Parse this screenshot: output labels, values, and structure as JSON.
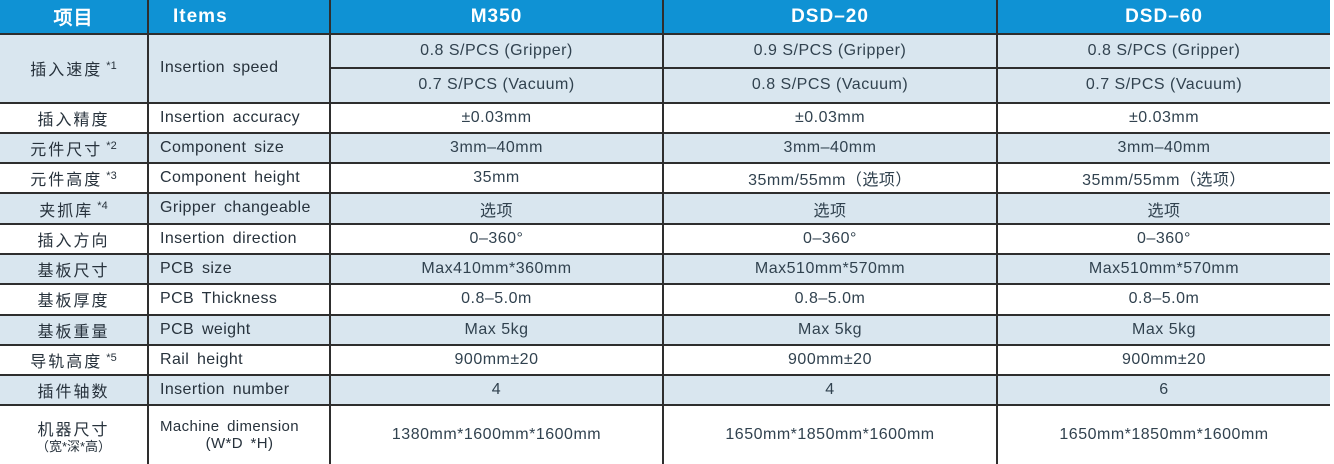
{
  "colors": {
    "header_bg": "#0f92d4",
    "header_text": "#ffffff",
    "row_shaded": "#d9e6ef",
    "row_plain": "#ffffff",
    "grid_line": "#2e2e2e",
    "label_text": "#27323c",
    "value_text": "#31424f"
  },
  "columns": [
    {
      "key": "cn",
      "label": "项目"
    },
    {
      "key": "en",
      "label": "Items"
    },
    {
      "key": "m350",
      "label": "M350"
    },
    {
      "key": "dsd20",
      "label": "DSD–20"
    },
    {
      "key": "dsd60",
      "label": "DSD–60"
    }
  ],
  "rows": [
    {
      "cn": "插入速度",
      "sup": "*1",
      "en": "Insertion speed",
      "span": 2,
      "values": [
        "0.8 S/PCS (Gripper)",
        "0.9 S/PCS (Gripper)",
        "0.8 S/PCS (Gripper)"
      ]
    },
    {
      "continuation": true,
      "values": [
        "0.7 S/PCS (Vacuum)",
        "0.8 S/PCS (Vacuum)",
        "0.7 S/PCS (Vacuum)"
      ]
    },
    {
      "cn": "插入精度",
      "en": "Insertion accuracy",
      "values": [
        "±0.03mm",
        "±0.03mm",
        "±0.03mm"
      ]
    },
    {
      "cn": "元件尺寸",
      "sup": "*2",
      "en": "Component size",
      "values": [
        "3mm–40mm",
        "3mm–40mm",
        "3mm–40mm"
      ]
    },
    {
      "cn": "元件高度",
      "sup": "*3",
      "en": "Component height",
      "values": [
        "35mm",
        "35mm/55mm（选项）",
        "35mm/55mm（选项）"
      ]
    },
    {
      "cn": "夹抓库",
      "sup": "*4",
      "en": "Gripper changeable",
      "values": [
        "选项",
        "选项",
        "选项"
      ]
    },
    {
      "cn": "插入方向",
      "en": "Insertion direction",
      "values": [
        "0–360°",
        "0–360°",
        "0–360°"
      ]
    },
    {
      "cn": "基板尺寸",
      "en": "PCB size",
      "values": [
        "Max410mm*360mm",
        "Max510mm*570mm",
        "Max510mm*570mm"
      ]
    },
    {
      "cn": "基板厚度",
      "en": "PCB Thickness",
      "values": [
        "0.8–5.0m",
        "0.8–5.0m",
        "0.8–5.0m"
      ]
    },
    {
      "cn": "基板重量",
      "en": "PCB weight",
      "values": [
        "Max 5kg",
        "Max 5kg",
        "Max 5kg"
      ]
    },
    {
      "cn": "导轨高度",
      "sup": "*5",
      "en": "Rail height",
      "values": [
        "900mm±20",
        "900mm±20",
        "900mm±20"
      ]
    },
    {
      "cn": "插件轴数",
      "en": "Insertion number",
      "values": [
        "4",
        "4",
        "6"
      ]
    },
    {
      "cn": "机器尺寸",
      "cn2": "（宽*深*高）",
      "en": "Machine dimension",
      "en2": "(W*D *H)",
      "values": [
        "1380mm*1600mm*1600mm",
        "1650mm*1850mm*1600mm",
        "1650mm*1850mm*1600mm"
      ]
    }
  ]
}
